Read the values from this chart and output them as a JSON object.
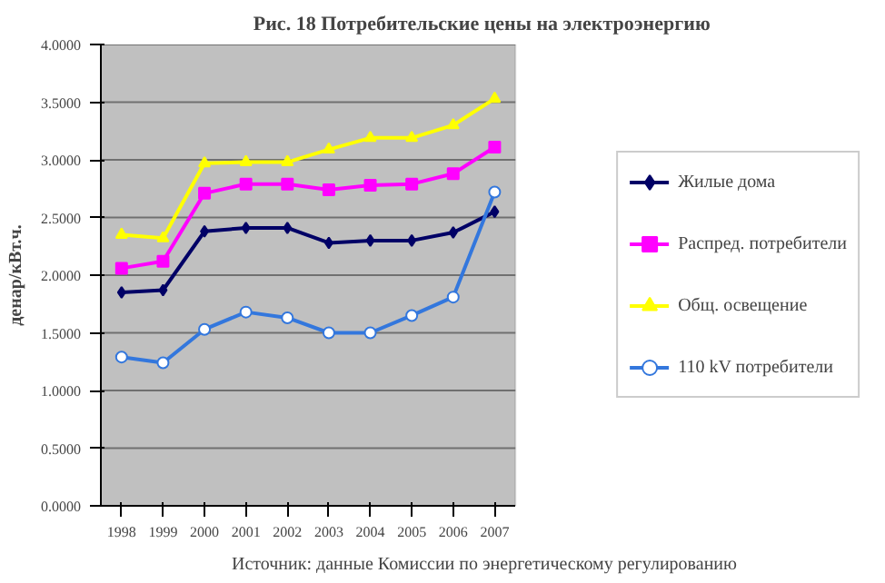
{
  "chart_data": {
    "type": "line",
    "title": "Рис. 18  Потребительские цены на электроэнергию",
    "ylabel": "денар/кВт.ч.",
    "categories": [
      "1998",
      "1999",
      "2000",
      "2001",
      "2002",
      "2003",
      "2004",
      "2005",
      "2006",
      "2007"
    ],
    "series": [
      {
        "name": "Жилые дома",
        "color": "#000066",
        "marker": "diamond",
        "values": [
          1.85,
          1.87,
          2.38,
          2.41,
          2.41,
          2.28,
          2.3,
          2.3,
          2.37,
          2.55
        ]
      },
      {
        "name": "Распред. потребители",
        "color": "#ff00ff",
        "marker": "square",
        "values": [
          2.06,
          2.12,
          2.71,
          2.79,
          2.79,
          2.74,
          2.78,
          2.79,
          2.88,
          3.11
        ]
      },
      {
        "name": "Общ. освещение",
        "color": "#ffff00",
        "marker": "triangle",
        "values": [
          2.35,
          2.32,
          2.97,
          2.98,
          2.98,
          3.09,
          3.19,
          3.19,
          3.3,
          3.53
        ]
      },
      {
        "name": "110 kV потребители",
        "color": "#3377dd",
        "marker": "circle",
        "values": [
          1.29,
          1.24,
          1.53,
          1.68,
          1.63,
          1.5,
          1.5,
          1.65,
          1.81,
          2.72
        ]
      }
    ],
    "ylim": [
      0,
      4
    ],
    "yticks": [
      {
        "value": 0,
        "label": "0.0000"
      },
      {
        "value": 0.5,
        "label": "0.5000"
      },
      {
        "value": 1,
        "label": "1.0000"
      },
      {
        "value": 1.5,
        "label": "1.5000"
      },
      {
        "value": 2,
        "label": "2.0000"
      },
      {
        "value": 2.5,
        "label": "2.5000"
      },
      {
        "value": 3,
        "label": "3.0000"
      },
      {
        "value": 3.5,
        "label": "3.5000"
      },
      {
        "value": 4,
        "label": "4.0000"
      }
    ],
    "grid": "y",
    "legend": "right",
    "line_style": "solid",
    "annotations": [
      "Источник: данные Комиссии по энергетическому регулированию"
    ]
  }
}
